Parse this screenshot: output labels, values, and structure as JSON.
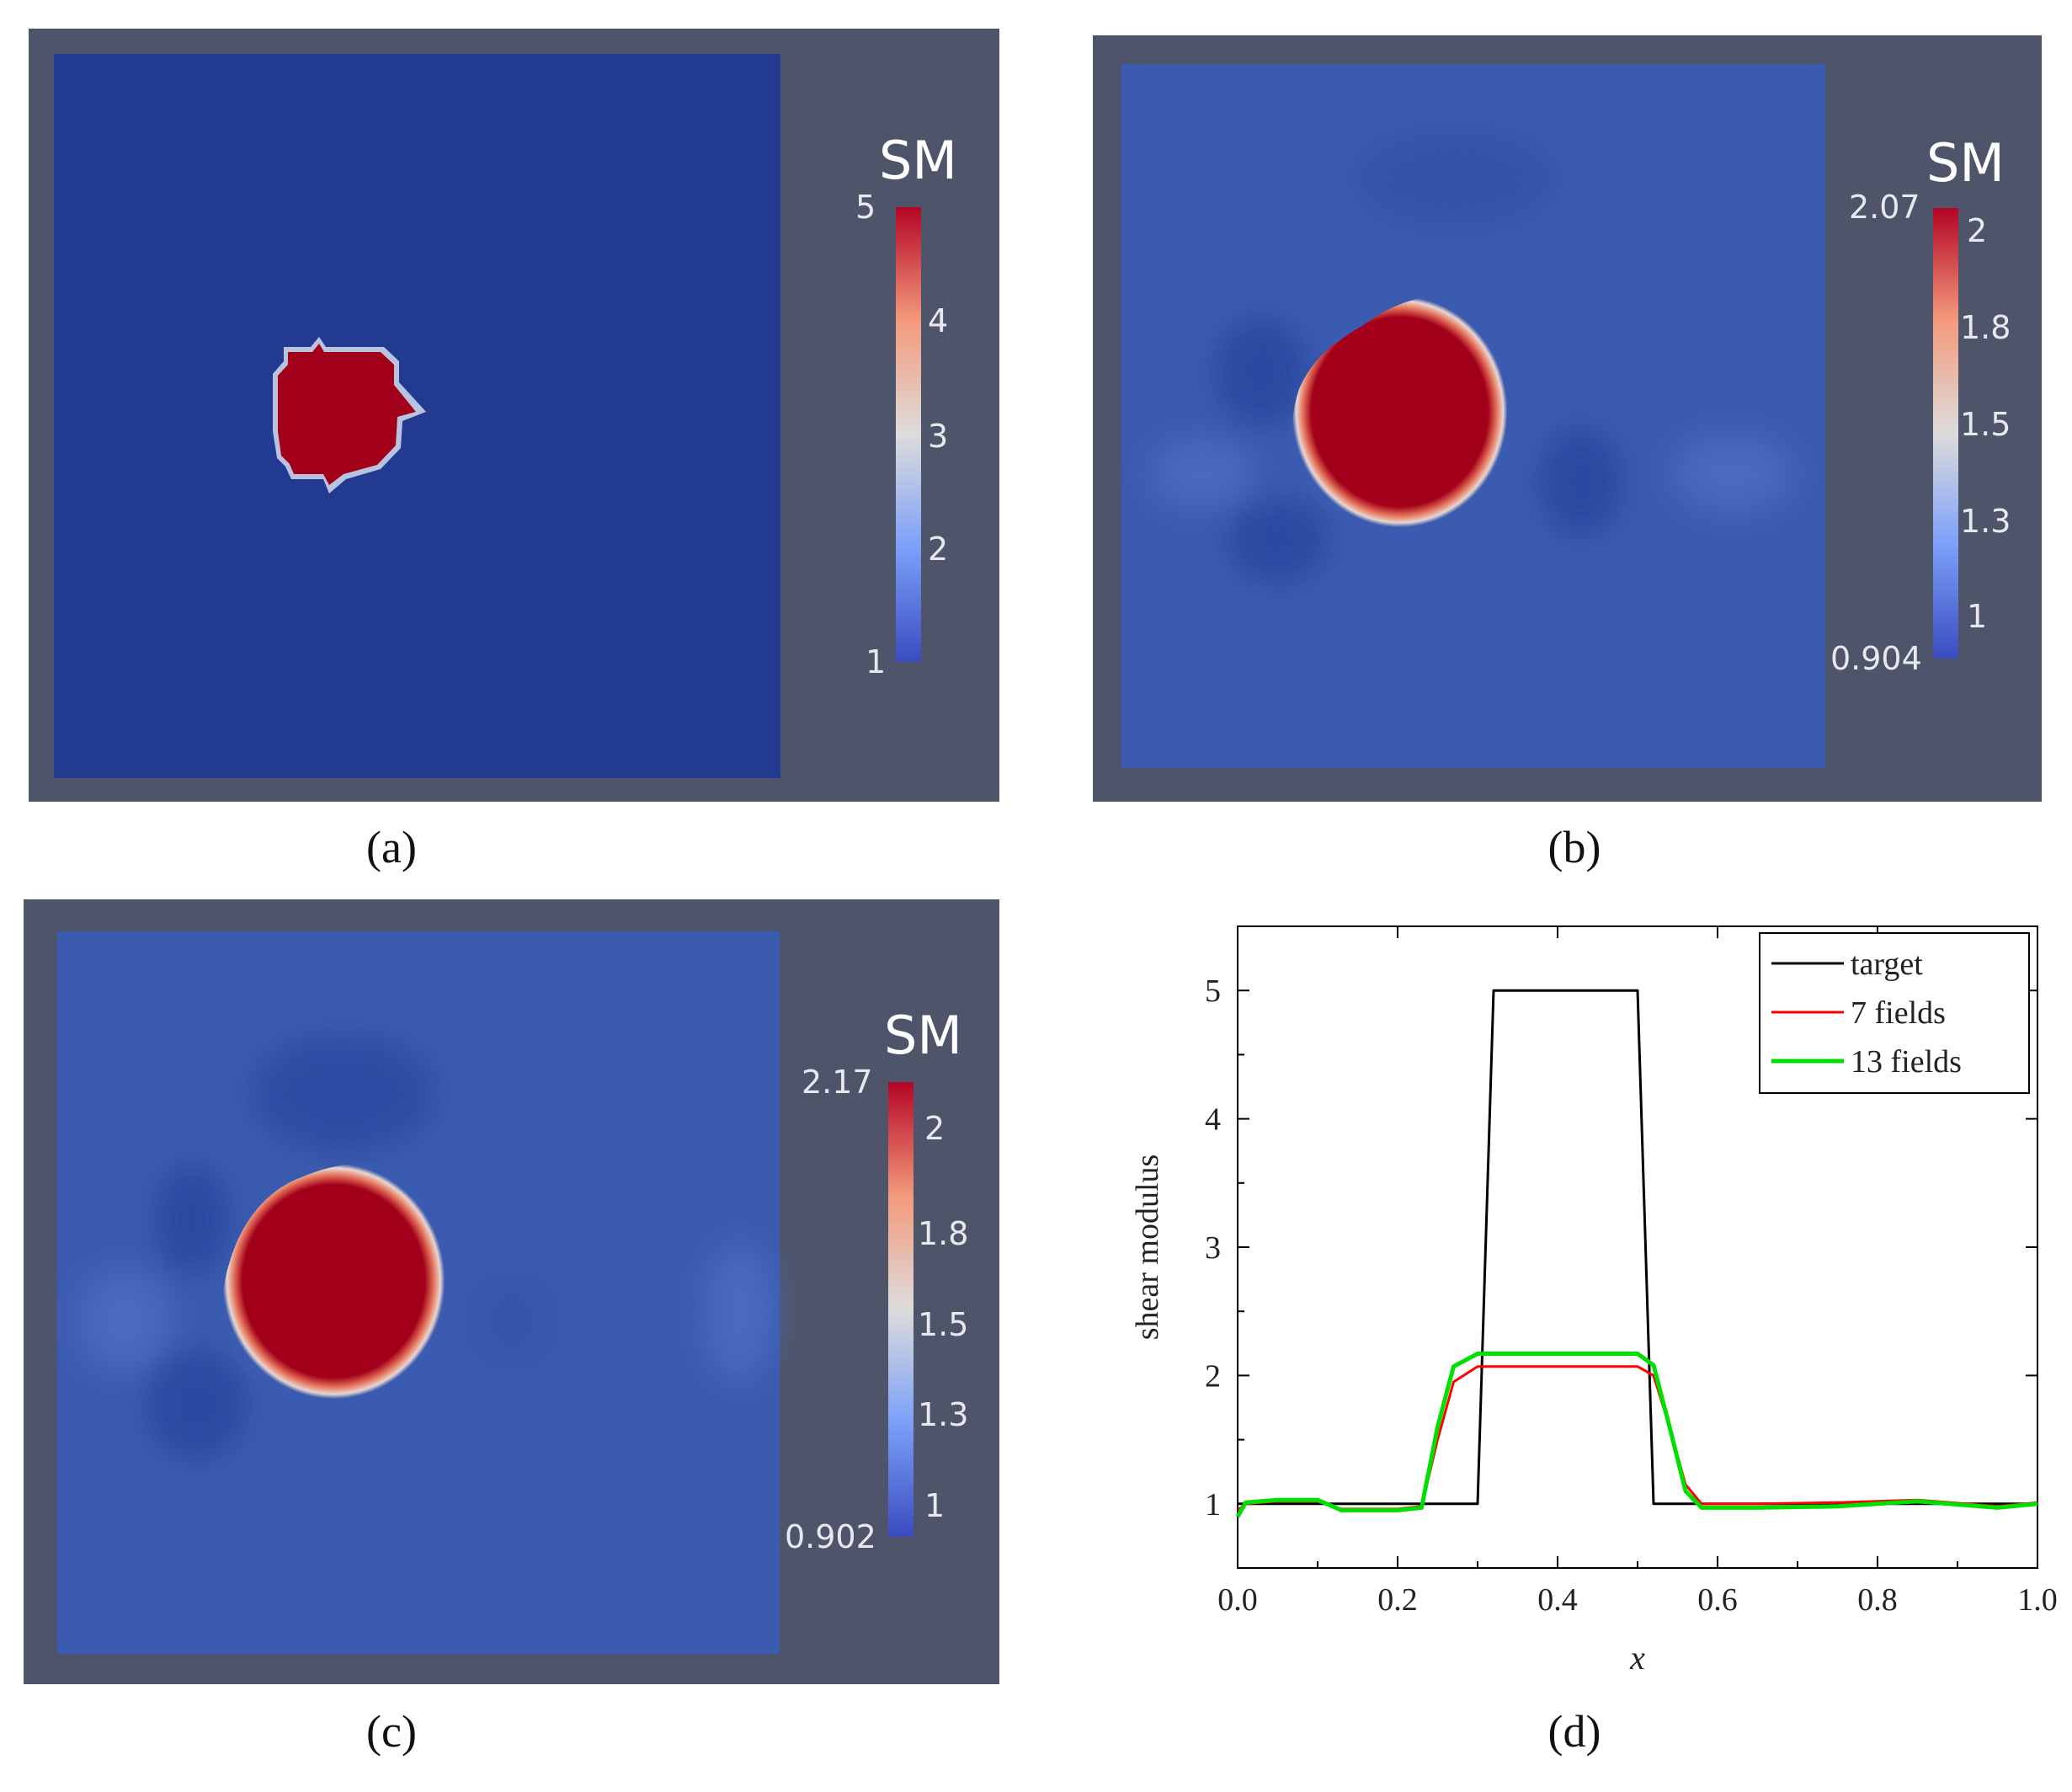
{
  "figure": {
    "panels": [
      {
        "id": "a",
        "caption": "(a)",
        "colorbar": {
          "title": "SM",
          "min_label": "1",
          "max_label": "5",
          "min": 1,
          "max": 5,
          "ticks": [
            {
              "value": 2,
              "label": "2"
            },
            {
              "value": 3,
              "label": "3"
            },
            {
              "value": 4,
              "label": "4"
            }
          ]
        }
      },
      {
        "id": "b",
        "caption": "(b)",
        "colorbar": {
          "title": "SM",
          "min_label": "0.904",
          "max_label": "2.07",
          "min": 0.904,
          "max": 2.07,
          "ticks": [
            {
              "value": 1,
              "label": "1"
            },
            {
              "value": 1.3,
              "label": "1.3"
            },
            {
              "value": 1.5,
              "label": "1.5"
            },
            {
              "value": 1.8,
              "label": "1.8"
            },
            {
              "value": 2,
              "label": "2"
            }
          ]
        }
      },
      {
        "id": "c",
        "caption": "(c)",
        "colorbar": {
          "title": "SM",
          "min_label": "0.902",
          "max_label": "2.17",
          "min": 0.902,
          "max": 2.17,
          "ticks": [
            {
              "value": 1,
              "label": "1"
            },
            {
              "value": 1.3,
              "label": "1.3"
            },
            {
              "value": 1.5,
              "label": "1.5"
            },
            {
              "value": 1.8,
              "label": "1.8"
            },
            {
              "value": 2,
              "label": "2"
            }
          ]
        }
      }
    ],
    "colors": {
      "frame": "#4e556b",
      "field_low": "#233a91",
      "field_mid": "#3b5bb0",
      "inclusion": "#a2001a"
    }
  },
  "chart_data": {
    "type": "line",
    "caption": "(d)",
    "xlabel": "x",
    "ylabel": "shear modulus",
    "xlim": [
      0.0,
      1.0
    ],
    "ylim": [
      0.5,
      5.5
    ],
    "xticks": [
      "0.0",
      "0.2",
      "0.4",
      "0.6",
      "0.8",
      "1.0"
    ],
    "xtick_values": [
      0.0,
      0.2,
      0.4,
      0.6,
      0.8,
      1.0
    ],
    "yticks": [
      "1",
      "2",
      "3",
      "4",
      "5"
    ],
    "ytick_values": [
      1,
      2,
      3,
      4,
      5
    ],
    "legend_position": "top-right",
    "series": [
      {
        "name": "target",
        "color": "#000000",
        "x": [
          0.0,
          0.2,
          0.3,
          0.32,
          0.4,
          0.5,
          0.52,
          0.6,
          0.8,
          1.0
        ],
        "y": [
          1.0,
          1.0,
          1.0,
          5.0,
          5.0,
          5.0,
          1.0,
          1.0,
          1.0,
          1.0
        ]
      },
      {
        "name": "7 fields",
        "color": "#ff0000",
        "x": [
          0.0,
          0.01,
          0.05,
          0.1,
          0.13,
          0.2,
          0.23,
          0.25,
          0.27,
          0.3,
          0.35,
          0.4,
          0.45,
          0.5,
          0.52,
          0.54,
          0.56,
          0.58,
          0.65,
          0.75,
          0.85,
          0.95,
          1.0
        ],
        "y": [
          0.95,
          1.0,
          1.02,
          1.02,
          0.96,
          0.96,
          0.98,
          1.5,
          1.95,
          2.07,
          2.07,
          2.07,
          2.07,
          2.07,
          2.0,
          1.6,
          1.15,
          1.0,
          1.0,
          1.01,
          1.03,
          0.98,
          1.01
        ]
      },
      {
        "name": "13 fields",
        "color": "#00e000",
        "x": [
          0.0,
          0.01,
          0.05,
          0.1,
          0.13,
          0.2,
          0.23,
          0.25,
          0.27,
          0.3,
          0.35,
          0.4,
          0.45,
          0.5,
          0.52,
          0.54,
          0.56,
          0.58,
          0.65,
          0.75,
          0.85,
          0.95,
          1.0
        ],
        "y": [
          0.9,
          1.01,
          1.03,
          1.03,
          0.95,
          0.95,
          0.97,
          1.6,
          2.07,
          2.17,
          2.17,
          2.17,
          2.17,
          2.17,
          2.08,
          1.6,
          1.1,
          0.97,
          0.97,
          0.98,
          1.02,
          0.97,
          1.0
        ]
      }
    ]
  }
}
